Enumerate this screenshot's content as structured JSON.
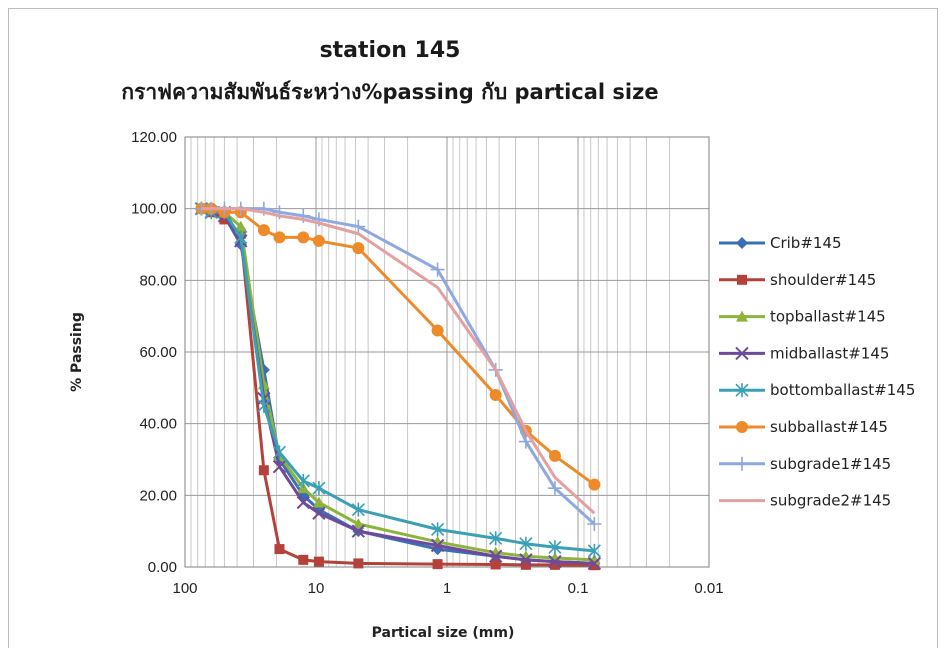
{
  "chart_data": {
    "type": "line",
    "title": "station 145",
    "subtitle": "กราฟความสัมพันธ์ระหว่าง%passing กับ partical size",
    "xlabel": "Partical size (mm)",
    "ylabel": "% Passing",
    "xscale": "log",
    "xreversed": true,
    "xlim": [
      100,
      0.01
    ],
    "ylim": [
      0,
      120
    ],
    "xticks": [
      "100",
      "10",
      "1",
      "0.1",
      "0.01"
    ],
    "yticks": [
      "0.00",
      "20.00",
      "40.00",
      "60.00",
      "80.00",
      "100.00",
      "120.00"
    ],
    "grid": true,
    "legend_position": "right",
    "series": [
      {
        "name": "Crib#145",
        "color": "#3a6fb5",
        "marker": "diamond",
        "x": [
          75,
          63,
          50,
          37.5,
          25,
          19,
          12.5,
          9.5,
          4.75,
          1.18,
          0.425,
          0.25,
          0.15,
          0.075
        ],
        "y": [
          100,
          100,
          98,
          90,
          55,
          30,
          20,
          16,
          10,
          5,
          3,
          2,
          1.5,
          1
        ]
      },
      {
        "name": "shoulder#145",
        "color": "#b5423a",
        "marker": "square",
        "x": [
          75,
          63,
          50,
          37.5,
          25,
          19,
          12.5,
          9.5,
          4.75,
          1.18,
          0.425,
          0.25,
          0.15,
          0.075
        ],
        "y": [
          100,
          99,
          97,
          93,
          27,
          5,
          2,
          1.5,
          1,
          0.8,
          0.7,
          0.6,
          0.6,
          0.5
        ]
      },
      {
        "name": "topballast#145",
        "color": "#8db33a",
        "marker": "triangle",
        "x": [
          75,
          63,
          50,
          37.5,
          25,
          19,
          12.5,
          9.5,
          4.75,
          1.18,
          0.425,
          0.25,
          0.15,
          0.075
        ],
        "y": [
          100,
          100,
          99,
          95,
          51,
          31,
          22,
          18,
          12,
          7,
          4,
          3,
          2.5,
          2
        ]
      },
      {
        "name": "midballast#145",
        "color": "#6e4b9a",
        "marker": "x",
        "x": [
          75,
          63,
          50,
          37.5,
          25,
          19,
          12.5,
          9.5,
          4.75,
          1.18,
          0.425,
          0.25,
          0.15,
          0.075
        ],
        "y": [
          100,
          99,
          98,
          91,
          47,
          28,
          18,
          15,
          10,
          6,
          3,
          2,
          1.5,
          1
        ]
      },
      {
        "name": "bottomballast#145",
        "color": "#3aa0b5",
        "marker": "asterisk",
        "x": [
          75,
          63,
          50,
          37.5,
          25,
          19,
          12.5,
          9.5,
          4.75,
          1.18,
          0.425,
          0.25,
          0.15,
          0.075
        ],
        "y": [
          100,
          99,
          99,
          92,
          45,
          32,
          24,
          22,
          16,
          10.5,
          8,
          6.5,
          5.5,
          4.5
        ]
      },
      {
        "name": "subballast#145",
        "color": "#ef8a2a",
        "marker": "circle",
        "x": [
          75,
          63,
          50,
          37.5,
          25,
          19,
          12.5,
          9.5,
          4.75,
          1.18,
          0.425,
          0.25,
          0.15,
          0.075
        ],
        "y": [
          100,
          100,
          99,
          99,
          94,
          92,
          92,
          91,
          89,
          66,
          48,
          38,
          31,
          23
        ]
      },
      {
        "name": "subgrade1#145",
        "color": "#8ea8e0",
        "marker": "plus",
        "x": [
          75,
          63,
          50,
          37.5,
          25,
          19,
          12.5,
          9.5,
          4.75,
          1.18,
          0.425,
          0.25,
          0.15,
          0.075
        ],
        "y": [
          100,
          100,
          100,
          100,
          100,
          99,
          98,
          97,
          95,
          83,
          55,
          35,
          22,
          12
        ]
      },
      {
        "name": "subgrade2#145",
        "color": "#e3a0a0",
        "marker": "none",
        "x": [
          75,
          63,
          50,
          37.5,
          25,
          19,
          12.5,
          9.5,
          4.75,
          1.18,
          0.425,
          0.25,
          0.15,
          0.075
        ],
        "y": [
          100,
          100,
          100,
          100,
          99,
          98,
          97,
          96,
          93,
          78,
          55,
          38,
          25,
          15
        ]
      }
    ]
  }
}
